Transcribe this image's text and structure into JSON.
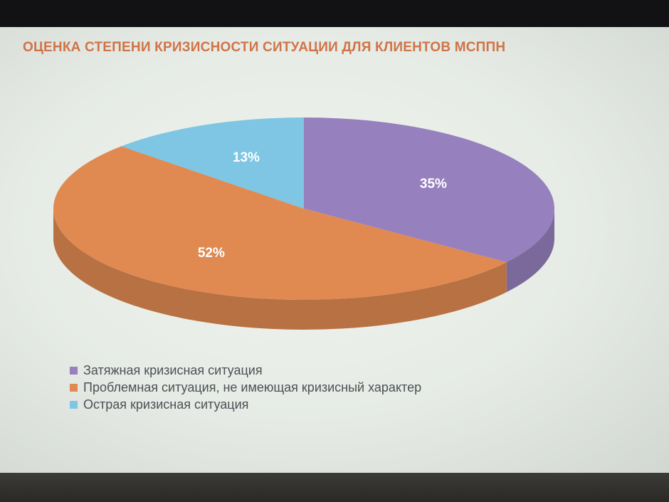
{
  "colors": {
    "slice_1": "#9780be",
    "slice_2": "#e08a52",
    "slice_3": "#7ec6e4"
  },
  "chart_data": {
    "type": "pie",
    "title": "ОЦЕНКА СТЕПЕНИ КРИЗИСНОСТИ СИТУАЦИИ ДЛЯ КЛИЕНТОВ МСППН",
    "legend_position": "bottom-left",
    "slices": [
      {
        "label": "Затяжная кризисная ситуация",
        "value": 35,
        "value_label": "35%"
      },
      {
        "label": "Проблемная ситуация, не имеющая кризисный характер",
        "value": 52,
        "value_label": "52%"
      },
      {
        "label": "Острая кризисная ситуация",
        "value": 13,
        "value_label": "13%"
      }
    ]
  }
}
